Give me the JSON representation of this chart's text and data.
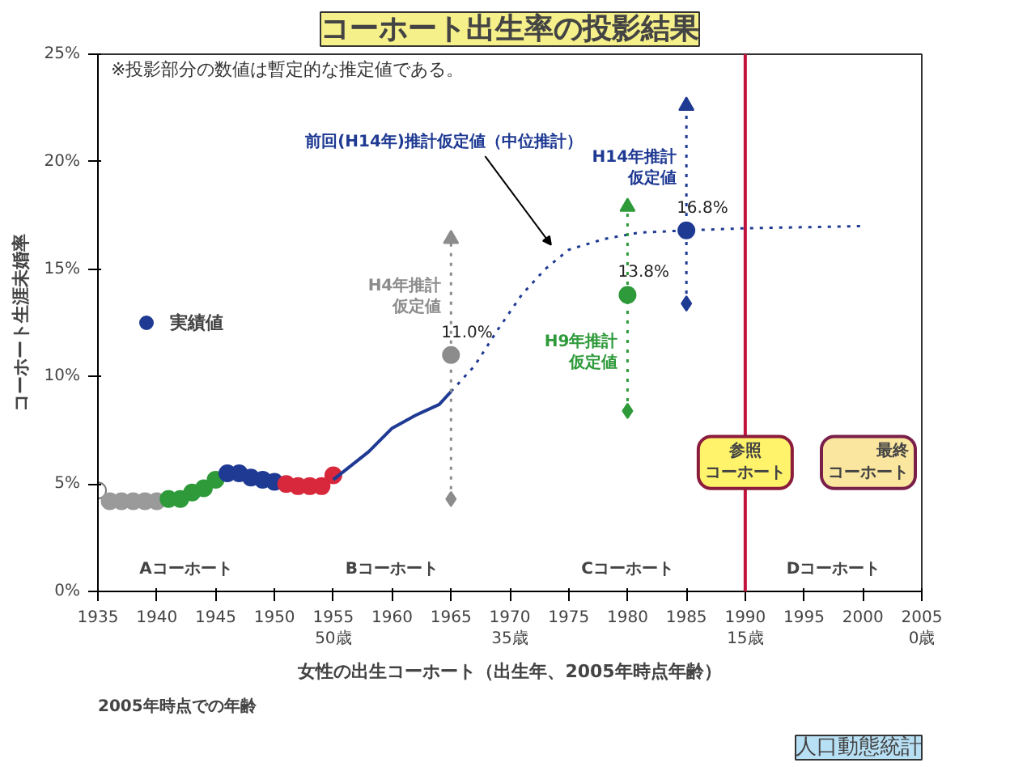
{
  "chart_data": {
    "type": "scatter",
    "title": "コーホート出生率の投影結果",
    "xlabel": "女性の出生コーホート（出生年、2005年時点年齢）",
    "ylabel": "コーホート生涯未婚率",
    "xlim": [
      1935,
      2005
    ],
    "ylim": [
      0,
      25
    ],
    "xticks": [
      1935,
      1940,
      1945,
      1950,
      {
        "value": 1955,
        "label": "1955\n50歳"
      },
      1960,
      1965,
      {
        "value": 1970,
        "label": "1970\n35歳"
      },
      1975,
      1980,
      1985,
      {
        "value": 1990,
        "label": "1990\n15歳"
      },
      1995,
      2000,
      {
        "value": 2005,
        "label": "2005\n0歳"
      }
    ],
    "yticks": [
      {
        "value": 0,
        "label": "0%"
      },
      {
        "value": 5,
        "label": "5%"
      },
      {
        "value": 10,
        "label": "10%"
      },
      {
        "value": 15,
        "label": "15%"
      },
      {
        "value": 20,
        "label": "20%"
      },
      {
        "value": 25,
        "label": "25%"
      }
    ],
    "grid": false,
    "legend": "left",
    "marker": "circle",
    "series": [
      {
        "name": "実績値",
        "color": "#1f3a93",
        "x": [
          1935,
          1936,
          1937,
          1938,
          1939,
          1940,
          1941,
          1942,
          1943,
          1944,
          1945,
          1946,
          1947,
          1948,
          1949,
          1950,
          1951,
          1952,
          1953,
          1954,
          1955
        ],
        "values": [
          4.7,
          4.2,
          4.2,
          4.2,
          4.2,
          4.2,
          4.3,
          4.3,
          4.6,
          4.8,
          5.2,
          5.5,
          5.5,
          5.3,
          5.2,
          5.1,
          5.0,
          4.9,
          4.9,
          4.9,
          5.4
        ],
        "colors": [
          "#ffffff",
          "#9a9a9a",
          "#9a9a9a",
          "#9a9a9a",
          "#9a9a9a",
          "#9a9a9a",
          "#2e9a3a",
          "#2e9a3a",
          "#2e9a3a",
          "#2e9a3a",
          "#2e9a3a",
          "#1f3a93",
          "#1f3a93",
          "#1f3a93",
          "#1f3a93",
          "#1f3a93",
          "#d8283c",
          "#d8283c",
          "#d8283c",
          "#d8283c",
          "#d8283c"
        ]
      },
      {
        "type": "line",
        "color": "#1f3a93",
        "line_style": "solid",
        "marker": "none",
        "x": [
          1955,
          1958,
          1960,
          1962,
          1964,
          1965
        ],
        "values": [
          5.2,
          6.5,
          7.6,
          8.2,
          8.7,
          9.3
        ]
      },
      {
        "type": "line",
        "color": "#1f3a93",
        "line_style": "dotted",
        "marker": "none",
        "x": [
          1965,
          1967,
          1969,
          1971,
          1973,
          1975,
          1978,
          1981,
          1985,
          1990,
          2000
        ],
        "values": [
          9.3,
          10.5,
          12.2,
          13.8,
          15.0,
          15.9,
          16.4,
          16.7,
          16.8,
          16.9,
          17.0
        ]
      },
      {
        "marker": "triangle",
        "color": "#1f3a93",
        "x": [
          1965,
          1980,
          1985
        ],
        "values": [
          16.4,
          17.9,
          22.6
        ],
        "colors": [
          "#8c8c8c",
          "#2e9a3a",
          "#1f3a93"
        ]
      },
      {
        "marker": "diamond",
        "color": "#1f3a93",
        "x": [
          1965,
          1980,
          1985
        ],
        "values": [
          4.3,
          8.4,
          13.4
        ],
        "colors": [
          "#8c8c8c",
          "#2e9a3a",
          "#1f3a93"
        ]
      },
      {
        "name": "H4年推計仮定値",
        "color": "#8c8c8c",
        "x": [
          1965
        ],
        "values": [
          11.0
        ],
        "errors": [
          [
            4.3,
            16.4
          ]
        ],
        "value_labels": [
          "11.0%"
        ]
      },
      {
        "name": "H9年推計仮定値",
        "color": "#2e9a3a",
        "x": [
          1980
        ],
        "values": [
          13.8
        ],
        "errors": [
          [
            8.4,
            17.9
          ]
        ],
        "value_labels": [
          "13.8%"
        ]
      },
      {
        "name": "H14年推計仮定値",
        "color": "#1f3a93",
        "x": [
          1985
        ],
        "values": [
          16.8
        ],
        "errors": [
          [
            13.4,
            22.6
          ]
        ],
        "value_labels": [
          "16.8%"
        ]
      }
    ],
    "ref_lines": [
      {
        "axis": "x",
        "value": 1990,
        "label": "参照コーホート",
        "color": "#c0143c"
      }
    ],
    "annotations": [
      "※投影部分の数値は暫定的な推定値である。",
      "2005年時点での年齢",
      "人口動態統計",
      "Aコーホート",
      "Bコーホート",
      "Cコーホート",
      "Dコーホート",
      "前回(H14年)推計仮定値（中位推計）",
      "最終コーホート"
    ]
  }
}
